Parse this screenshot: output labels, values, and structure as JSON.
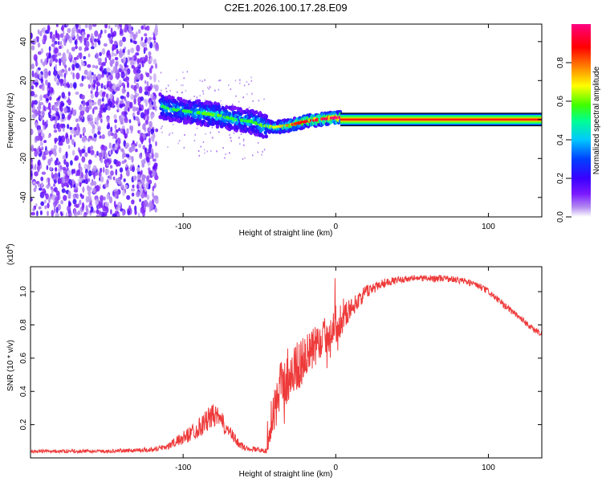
{
  "figure": {
    "title": "C2E1.2026.100.17.28.E09"
  },
  "chart_data": [
    {
      "type": "heatmap",
      "title": "C2E1.2026.100.17.28.E09",
      "xlabel": "Height of straight line (km)",
      "ylabel": "Frequency (Hz)",
      "xlim": [
        -200,
        135
      ],
      "ylim": [
        -50,
        49
      ],
      "xticks": [
        -100,
        0,
        100
      ],
      "xtick_labels": [
        "-100",
        "0",
        "100"
      ],
      "yticks": [
        -40,
        -20,
        0,
        20,
        40
      ],
      "ytick_labels": [
        "-40",
        "-20",
        "0",
        "20",
        "40"
      ],
      "grid": false,
      "colorbar": {
        "label": "Normalized spectral amplitude",
        "range": [
          0,
          1
        ],
        "ticks": [
          0.0,
          0.2,
          0.4,
          0.6,
          0.8
        ],
        "tick_labels": [
          "0.0",
          "0.2",
          "0.4",
          "0.6",
          "0.8"
        ],
        "colormap": [
          "#ffffff",
          "#b48cf0",
          "#7a19ff",
          "#3a00ff",
          "#0040ff",
          "#00c8ff",
          "#00ff90",
          "#40ff00",
          "#ffff00",
          "#ff8000",
          "#ff0000",
          "#ff0080"
        ]
      },
      "features": {
        "noise_region_x": [
          -200,
          -117
        ],
        "trace": [
          {
            "x": -115,
            "y": 7,
            "a": 0.45
          },
          {
            "x": -105,
            "y": 5,
            "a": 0.45
          },
          {
            "x": -95,
            "y": 4,
            "a": 0.45
          },
          {
            "x": -85,
            "y": 3,
            "a": 0.5
          },
          {
            "x": -75,
            "y": 2,
            "a": 0.5
          },
          {
            "x": -65,
            "y": 0,
            "a": 0.45
          },
          {
            "x": -55,
            "y": -1,
            "a": 0.45
          },
          {
            "x": -48,
            "y": -3,
            "a": 0.5
          },
          {
            "x": -40,
            "y": -4,
            "a": 0.55
          },
          {
            "x": -30,
            "y": -3,
            "a": 0.7
          },
          {
            "x": -20,
            "y": -1,
            "a": 0.8
          },
          {
            "x": -10,
            "y": 0,
            "a": 0.85
          },
          {
            "x": 0,
            "y": 1,
            "a": 0.9
          },
          {
            "x": 3,
            "y": 1,
            "a": 0.95
          }
        ],
        "steady_line": {
          "x_start": 3,
          "x_end": 135,
          "y": 0,
          "a": 0.9
        }
      }
    },
    {
      "type": "line",
      "xlabel": "Height of straight line (km)",
      "ylabel": "SNR (10 * v/v)",
      "y_multiplier": "(x10",
      "y_multiplier_exponent": "4",
      "y_multiplier_close": ")",
      "xlim": [
        -200,
        135
      ],
      "ylim": [
        0,
        1.15
      ],
      "xticks": [
        -100,
        0,
        100
      ],
      "xtick_labels": [
        "-100",
        "0",
        "100"
      ],
      "yticks": [
        0.2,
        0.4,
        0.6,
        0.8,
        1.0
      ],
      "ytick_labels": [
        "0.2",
        "0.4",
        "0.6",
        "0.8",
        "1.0"
      ],
      "grid": false,
      "series": [
        {
          "name": "SNR",
          "color": "#ee3a3a",
          "envelope": {
            "x": [
              -200,
              -150,
              -120,
              -110,
              -100,
              -90,
              -85,
              -80,
              -75,
              -70,
              -65,
              -60,
              -50,
              -45,
              -40,
              -35,
              -30,
              -25,
              -20,
              -15,
              -10,
              -5,
              0,
              10,
              20,
              30,
              40,
              50,
              60,
              70,
              80,
              90,
              100,
              110,
              120,
              130,
              135
            ],
            "y": [
              0.04,
              0.04,
              0.05,
              0.07,
              0.12,
              0.18,
              0.22,
              0.26,
              0.22,
              0.16,
              0.1,
              0.06,
              0.05,
              0.04,
              0.3,
              0.45,
              0.5,
              0.55,
              0.6,
              0.65,
              0.7,
              0.75,
              0.8,
              0.9,
              1.0,
              1.05,
              1.07,
              1.08,
              1.08,
              1.08,
              1.07,
              1.05,
              1.0,
              0.92,
              0.85,
              0.77,
              0.75
            ],
            "noise": [
              0.01,
              0.01,
              0.015,
              0.02,
              0.04,
              0.06,
              0.07,
              0.07,
              0.06,
              0.04,
              0.03,
              0.02,
              0.015,
              0.015,
              0.15,
              0.16,
              0.16,
              0.15,
              0.14,
              0.13,
              0.12,
              0.12,
              0.12,
              0.06,
              0.04,
              0.03,
              0.02,
              0.02,
              0.02,
              0.02,
              0.02,
              0.02,
              0.02,
              0.02,
              0.02,
              0.02,
              0.02
            ]
          }
        }
      ]
    }
  ]
}
